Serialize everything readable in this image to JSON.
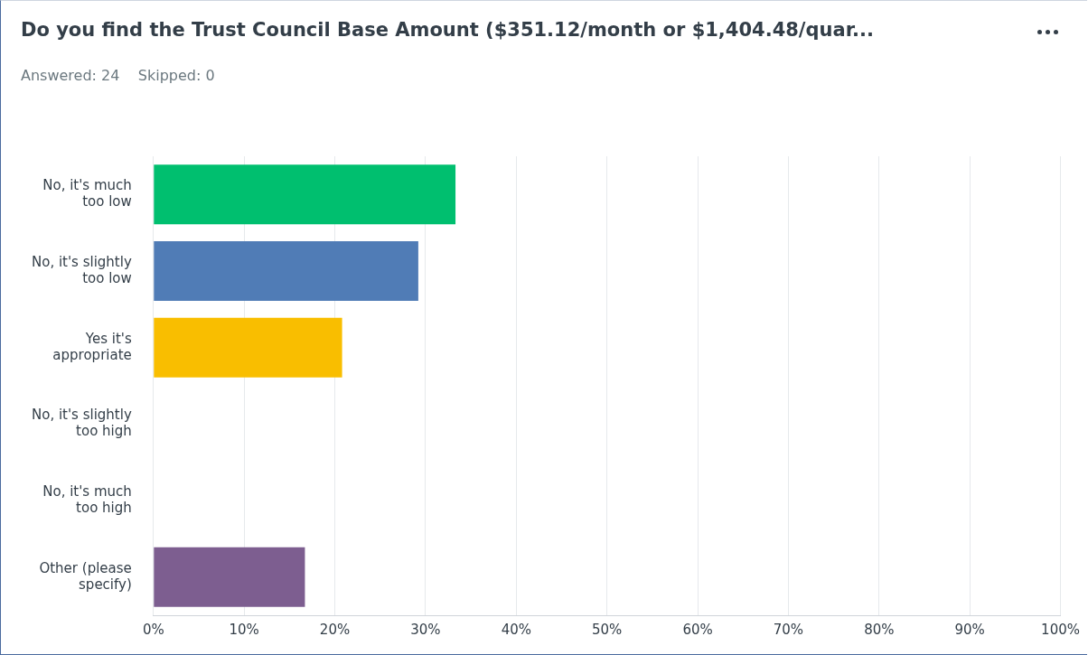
{
  "chart_data": {
    "type": "bar",
    "orientation": "horizontal",
    "title": "Do you find the Trust Council Base Amount ($351.12/month or $1,404.48/quar...",
    "subtitle": "Answered: 24    Skipped: 0",
    "categories": [
      "No, it's much too low",
      "No, it's slightly too low",
      "Yes it's appropriate",
      "No, it's slightly too high",
      "No, it's much too high",
      "Other (please specify)"
    ],
    "values": [
      33.3,
      29.2,
      20.8,
      0,
      0,
      16.7
    ],
    "colors": [
      "#00bf6f",
      "#507cb6",
      "#f9be00",
      "#f9be00",
      "#507cb6",
      "#7d5e90"
    ],
    "xlim": [
      0,
      100
    ],
    "xticks": [
      {
        "value": 0,
        "label": "0%"
      },
      {
        "value": 10,
        "label": "10%"
      },
      {
        "value": 20,
        "label": "20%"
      },
      {
        "value": 30,
        "label": "30%"
      },
      {
        "value": 40,
        "label": "40%"
      },
      {
        "value": 50,
        "label": "50%"
      },
      {
        "value": 60,
        "label": "60%"
      },
      {
        "value": 70,
        "label": "70%"
      },
      {
        "value": 80,
        "label": "80%"
      },
      {
        "value": 90,
        "label": "90%"
      },
      {
        "value": 100,
        "label": "100%"
      }
    ],
    "grid": "x",
    "legend": false
  }
}
